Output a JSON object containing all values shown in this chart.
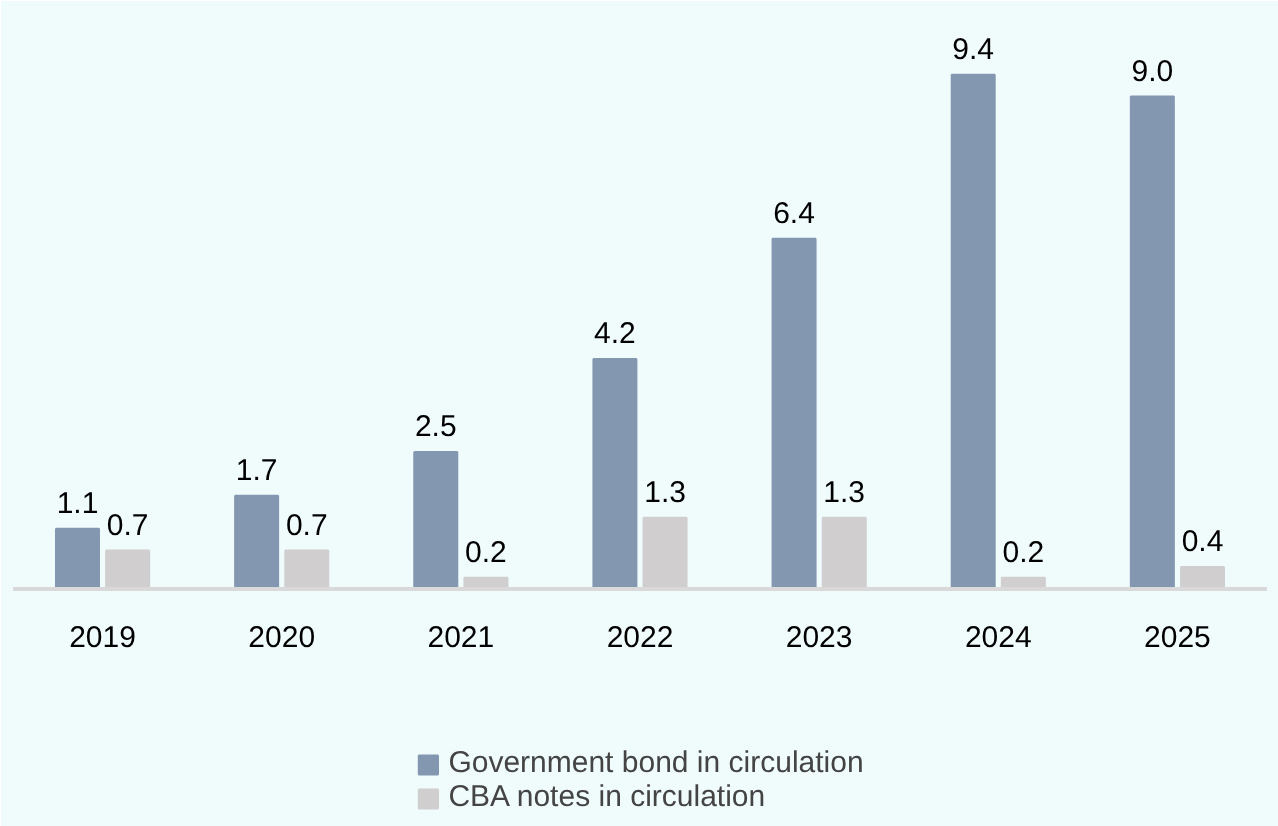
{
  "chart_data": {
    "type": "bar",
    "categories": [
      "2019",
      "2020",
      "2021",
      "2022",
      "2023",
      "2024",
      "2025"
    ],
    "series": [
      {
        "name": "Government bond in circulation",
        "color": "#8497b0",
        "values": [
          1.1,
          1.7,
          2.5,
          4.2,
          6.4,
          9.4,
          9.0
        ],
        "value_labels": [
          "1.1",
          "1.7",
          "2.5",
          "4.2",
          "6.4",
          "9.4",
          "9.0"
        ]
      },
      {
        "name": "CBA notes in circulation",
        "color": "#d0cece",
        "values": [
          0.7,
          0.7,
          0.2,
          1.3,
          1.3,
          0.2,
          0.4
        ],
        "value_labels": [
          "0.7",
          "0.7",
          "0.2",
          "1.3",
          "1.3",
          "0.2",
          "0.4"
        ]
      }
    ],
    "legend": "bottom"
  }
}
